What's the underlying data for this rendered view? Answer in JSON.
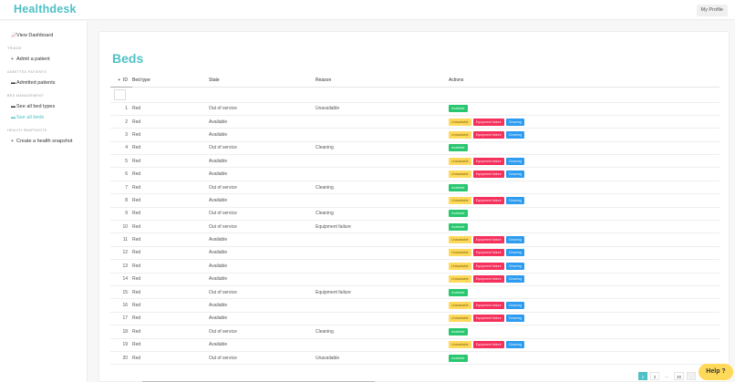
{
  "header": {
    "brand": "Healthdesk",
    "profile_label": "My Profile"
  },
  "sidebar": {
    "dashboard": {
      "icon": "chart-icon",
      "label": "View Dashboard"
    },
    "sections": [
      {
        "heading": "TRIAGE",
        "items": [
          {
            "icon": "plus-icon",
            "label": "Admit a patient"
          }
        ]
      },
      {
        "heading": "ADMITTED PATIENTS",
        "items": [
          {
            "icon": "bed-icon",
            "label": "Admitted patients"
          }
        ]
      },
      {
        "heading": "BED MANAGEMENT",
        "items": [
          {
            "icon": "bed-icon",
            "label": "See all bed types"
          },
          {
            "icon": "bed-icon",
            "label": "See all beds",
            "active": true
          }
        ]
      },
      {
        "heading": "HEALTH SNAPSHOTS",
        "items": [
          {
            "icon": "plus-icon",
            "label": "Create a health snapshot"
          }
        ]
      }
    ]
  },
  "main": {
    "title": "Beds",
    "columns": {
      "sort": "+",
      "id": "ID",
      "bed_type": "Bed type",
      "state": "State",
      "reason": "Reason",
      "actions": "Actions"
    },
    "action_labels": {
      "available": "Available",
      "unavailable": "Unavailable",
      "equipment_failure": "Equipment failure",
      "cleaning": "Cleaning"
    },
    "rows": [
      {
        "id": "1",
        "bed_type": "Red",
        "state": "Out of service",
        "reason": "Unavailable"
      },
      {
        "id": "2",
        "bed_type": "Red",
        "state": "Available",
        "reason": ""
      },
      {
        "id": "3",
        "bed_type": "Red",
        "state": "Available",
        "reason": ""
      },
      {
        "id": "4",
        "bed_type": "Red",
        "state": "Out of service",
        "reason": "Cleaning"
      },
      {
        "id": "5",
        "bed_type": "Red",
        "state": "Available",
        "reason": ""
      },
      {
        "id": "6",
        "bed_type": "Red",
        "state": "Available",
        "reason": ""
      },
      {
        "id": "7",
        "bed_type": "Red",
        "state": "Out of service",
        "reason": "Cleaning"
      },
      {
        "id": "8",
        "bed_type": "Red",
        "state": "Available",
        "reason": ""
      },
      {
        "id": "9",
        "bed_type": "Red",
        "state": "Out of service",
        "reason": "Cleaning"
      },
      {
        "id": "10",
        "bed_type": "Red",
        "state": "Out of service",
        "reason": "Equipment failure"
      },
      {
        "id": "11",
        "bed_type": "Red",
        "state": "Available",
        "reason": ""
      },
      {
        "id": "12",
        "bed_type": "Red",
        "state": "Available",
        "reason": ""
      },
      {
        "id": "13",
        "bed_type": "Red",
        "state": "Available",
        "reason": ""
      },
      {
        "id": "14",
        "bed_type": "Red",
        "state": "Available",
        "reason": ""
      },
      {
        "id": "15",
        "bed_type": "Red",
        "state": "Out of service",
        "reason": "Equipment failure"
      },
      {
        "id": "16",
        "bed_type": "Red",
        "state": "Available",
        "reason": ""
      },
      {
        "id": "17",
        "bed_type": "Red",
        "state": "Available",
        "reason": ""
      },
      {
        "id": "18",
        "bed_type": "Red",
        "state": "Out of service",
        "reason": "Cleaning"
      },
      {
        "id": "19",
        "bed_type": "Red",
        "state": "Available",
        "reason": ""
      },
      {
        "id": "20",
        "bed_type": "Red",
        "state": "Out of service",
        "reason": "Unavailable"
      }
    ]
  },
  "pagination": {
    "pages": [
      "1",
      "2",
      "...",
      "30"
    ],
    "current": "1",
    "next": "›"
  },
  "help": {
    "label": "Help ?"
  },
  "colors": {
    "accent": "#4fc1c6",
    "available": "#28c76f",
    "unavailable": "#ffd95a",
    "equipment_failure": "#f5305c",
    "cleaning": "#2d9cf0"
  }
}
